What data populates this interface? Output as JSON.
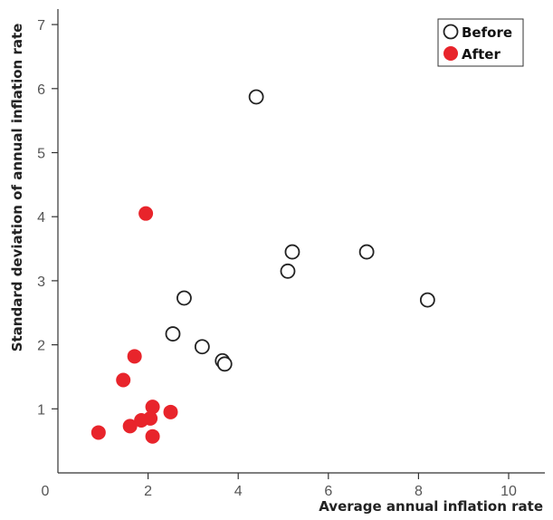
{
  "chart_data": {
    "type": "scatter",
    "xlabel": "Average annual inflation rate",
    "ylabel": "Standard deviation of annual inflation rate",
    "xlim": [
      0,
      10.8
    ],
    "ylim": [
      0,
      7.3
    ],
    "xticks": [
      0,
      2,
      4,
      6,
      8,
      10
    ],
    "yticks": [
      1,
      2,
      3,
      4,
      5,
      6,
      7
    ],
    "x_tick_labels": [
      "0",
      "2",
      "4",
      "6",
      "8",
      "10"
    ],
    "y_tick_labels": [
      "1",
      "2",
      "3",
      "4",
      "5",
      "6",
      "7"
    ],
    "grid": false,
    "legend_position": "top-right",
    "series": [
      {
        "name": "Before",
        "style": "hollow",
        "color": "#222222",
        "points": [
          {
            "x": 4.4,
            "y": 5.87
          },
          {
            "x": 5.2,
            "y": 3.45
          },
          {
            "x": 6.85,
            "y": 3.45
          },
          {
            "x": 5.1,
            "y": 3.15
          },
          {
            "x": 8.2,
            "y": 2.7
          },
          {
            "x": 2.8,
            "y": 2.73
          },
          {
            "x": 2.55,
            "y": 2.17
          },
          {
            "x": 3.2,
            "y": 1.97
          },
          {
            "x": 3.65,
            "y": 1.75
          },
          {
            "x": 3.7,
            "y": 1.7
          }
        ]
      },
      {
        "name": "After",
        "style": "filled",
        "color": "#e8242b",
        "points": [
          {
            "x": 1.95,
            "y": 4.05
          },
          {
            "x": 1.7,
            "y": 1.82
          },
          {
            "x": 1.45,
            "y": 1.45
          },
          {
            "x": 2.1,
            "y": 1.03
          },
          {
            "x": 2.5,
            "y": 0.95
          },
          {
            "x": 2.05,
            "y": 0.85
          },
          {
            "x": 1.85,
            "y": 0.82
          },
          {
            "x": 1.6,
            "y": 0.73
          },
          {
            "x": 0.9,
            "y": 0.63
          },
          {
            "x": 2.1,
            "y": 0.57
          }
        ]
      }
    ]
  }
}
